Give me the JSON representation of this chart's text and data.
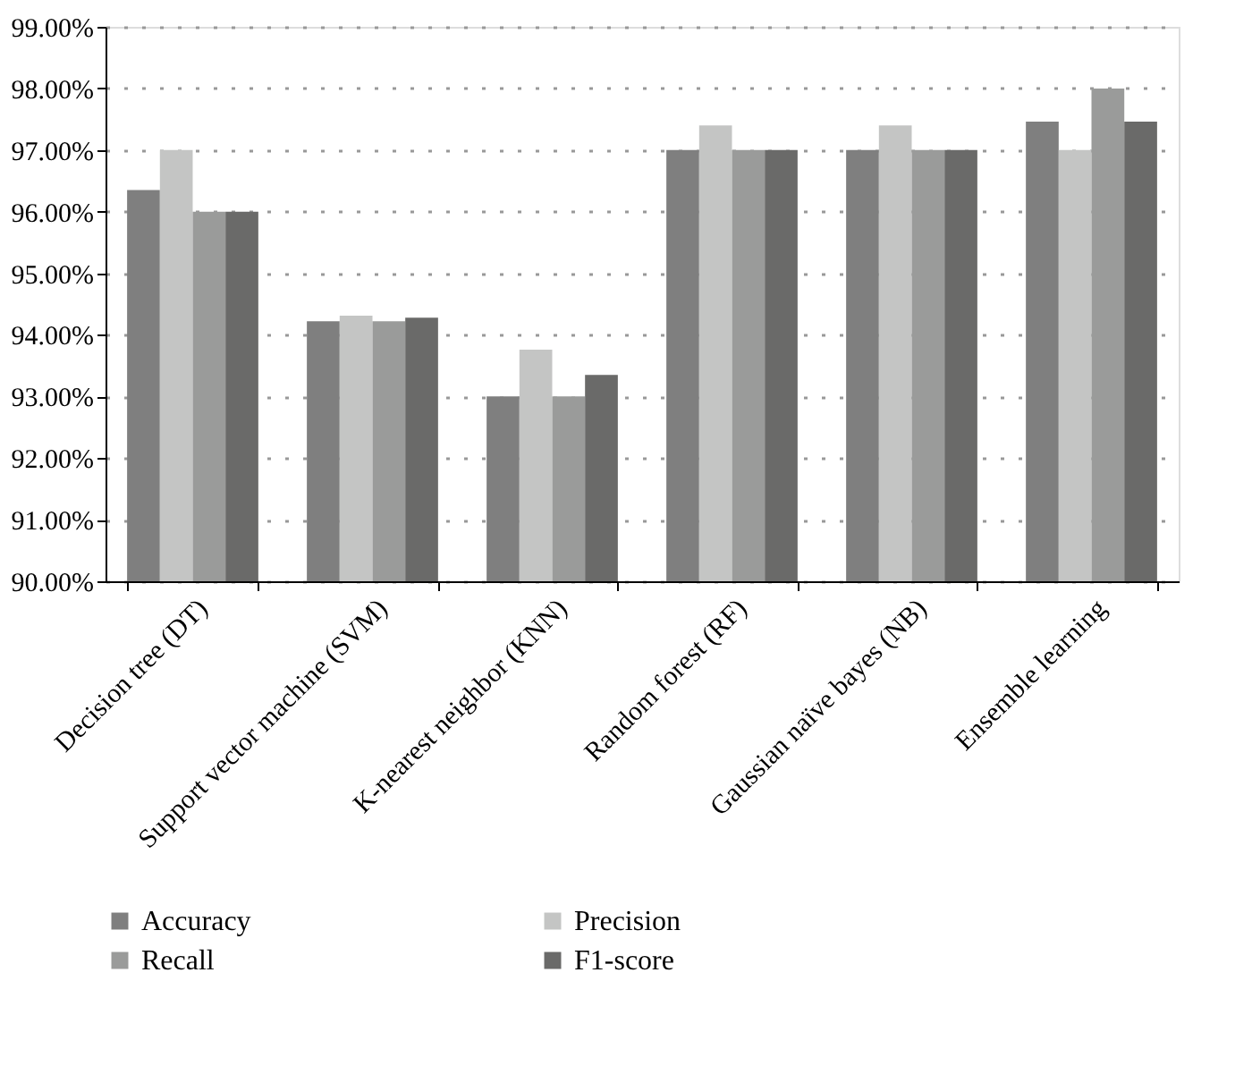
{
  "chart_data": {
    "type": "bar",
    "categories": [
      "Decision tree (DT)",
      "Support vector machine (SVM)",
      "K-nearest neighbor (KNN)",
      "Random forest (RF)",
      "Gaussian naïve bayes (NB)",
      "Ensemble learning"
    ],
    "series": [
      {
        "name": "Accuracy",
        "color": "#7f7f7f",
        "values": [
          96.35,
          94.22,
          93.0,
          97.0,
          97.0,
          97.46
        ]
      },
      {
        "name": "Precision",
        "color": "#c4c5c4",
        "values": [
          97.0,
          94.31,
          93.76,
          97.4,
          97.4,
          97.0
        ]
      },
      {
        "name": "Recall",
        "color": "#9a9b9a",
        "values": [
          96.0,
          94.22,
          93.0,
          97.0,
          97.0,
          98.0
        ]
      },
      {
        "name": "F1-score",
        "color": "#6a6a69",
        "values": [
          96.0,
          94.28,
          93.35,
          97.0,
          97.0,
          97.46
        ]
      }
    ],
    "ylim": [
      90,
      99
    ],
    "yticks": [
      {
        "value": 90,
        "label": "90.00%"
      },
      {
        "value": 91,
        "label": "91.00%"
      },
      {
        "value": 92,
        "label": "92.00%"
      },
      {
        "value": 93,
        "label": "93.00%"
      },
      {
        "value": 94,
        "label": "94.00%"
      },
      {
        "value": 95,
        "label": "95.00%"
      },
      {
        "value": 96,
        "label": "96.00%"
      },
      {
        "value": 97,
        "label": "97.00%"
      },
      {
        "value": 98,
        "label": "98.00%"
      },
      {
        "value": 99,
        "label": "99.00%"
      }
    ],
    "grid": "y",
    "legend": "bottom"
  }
}
